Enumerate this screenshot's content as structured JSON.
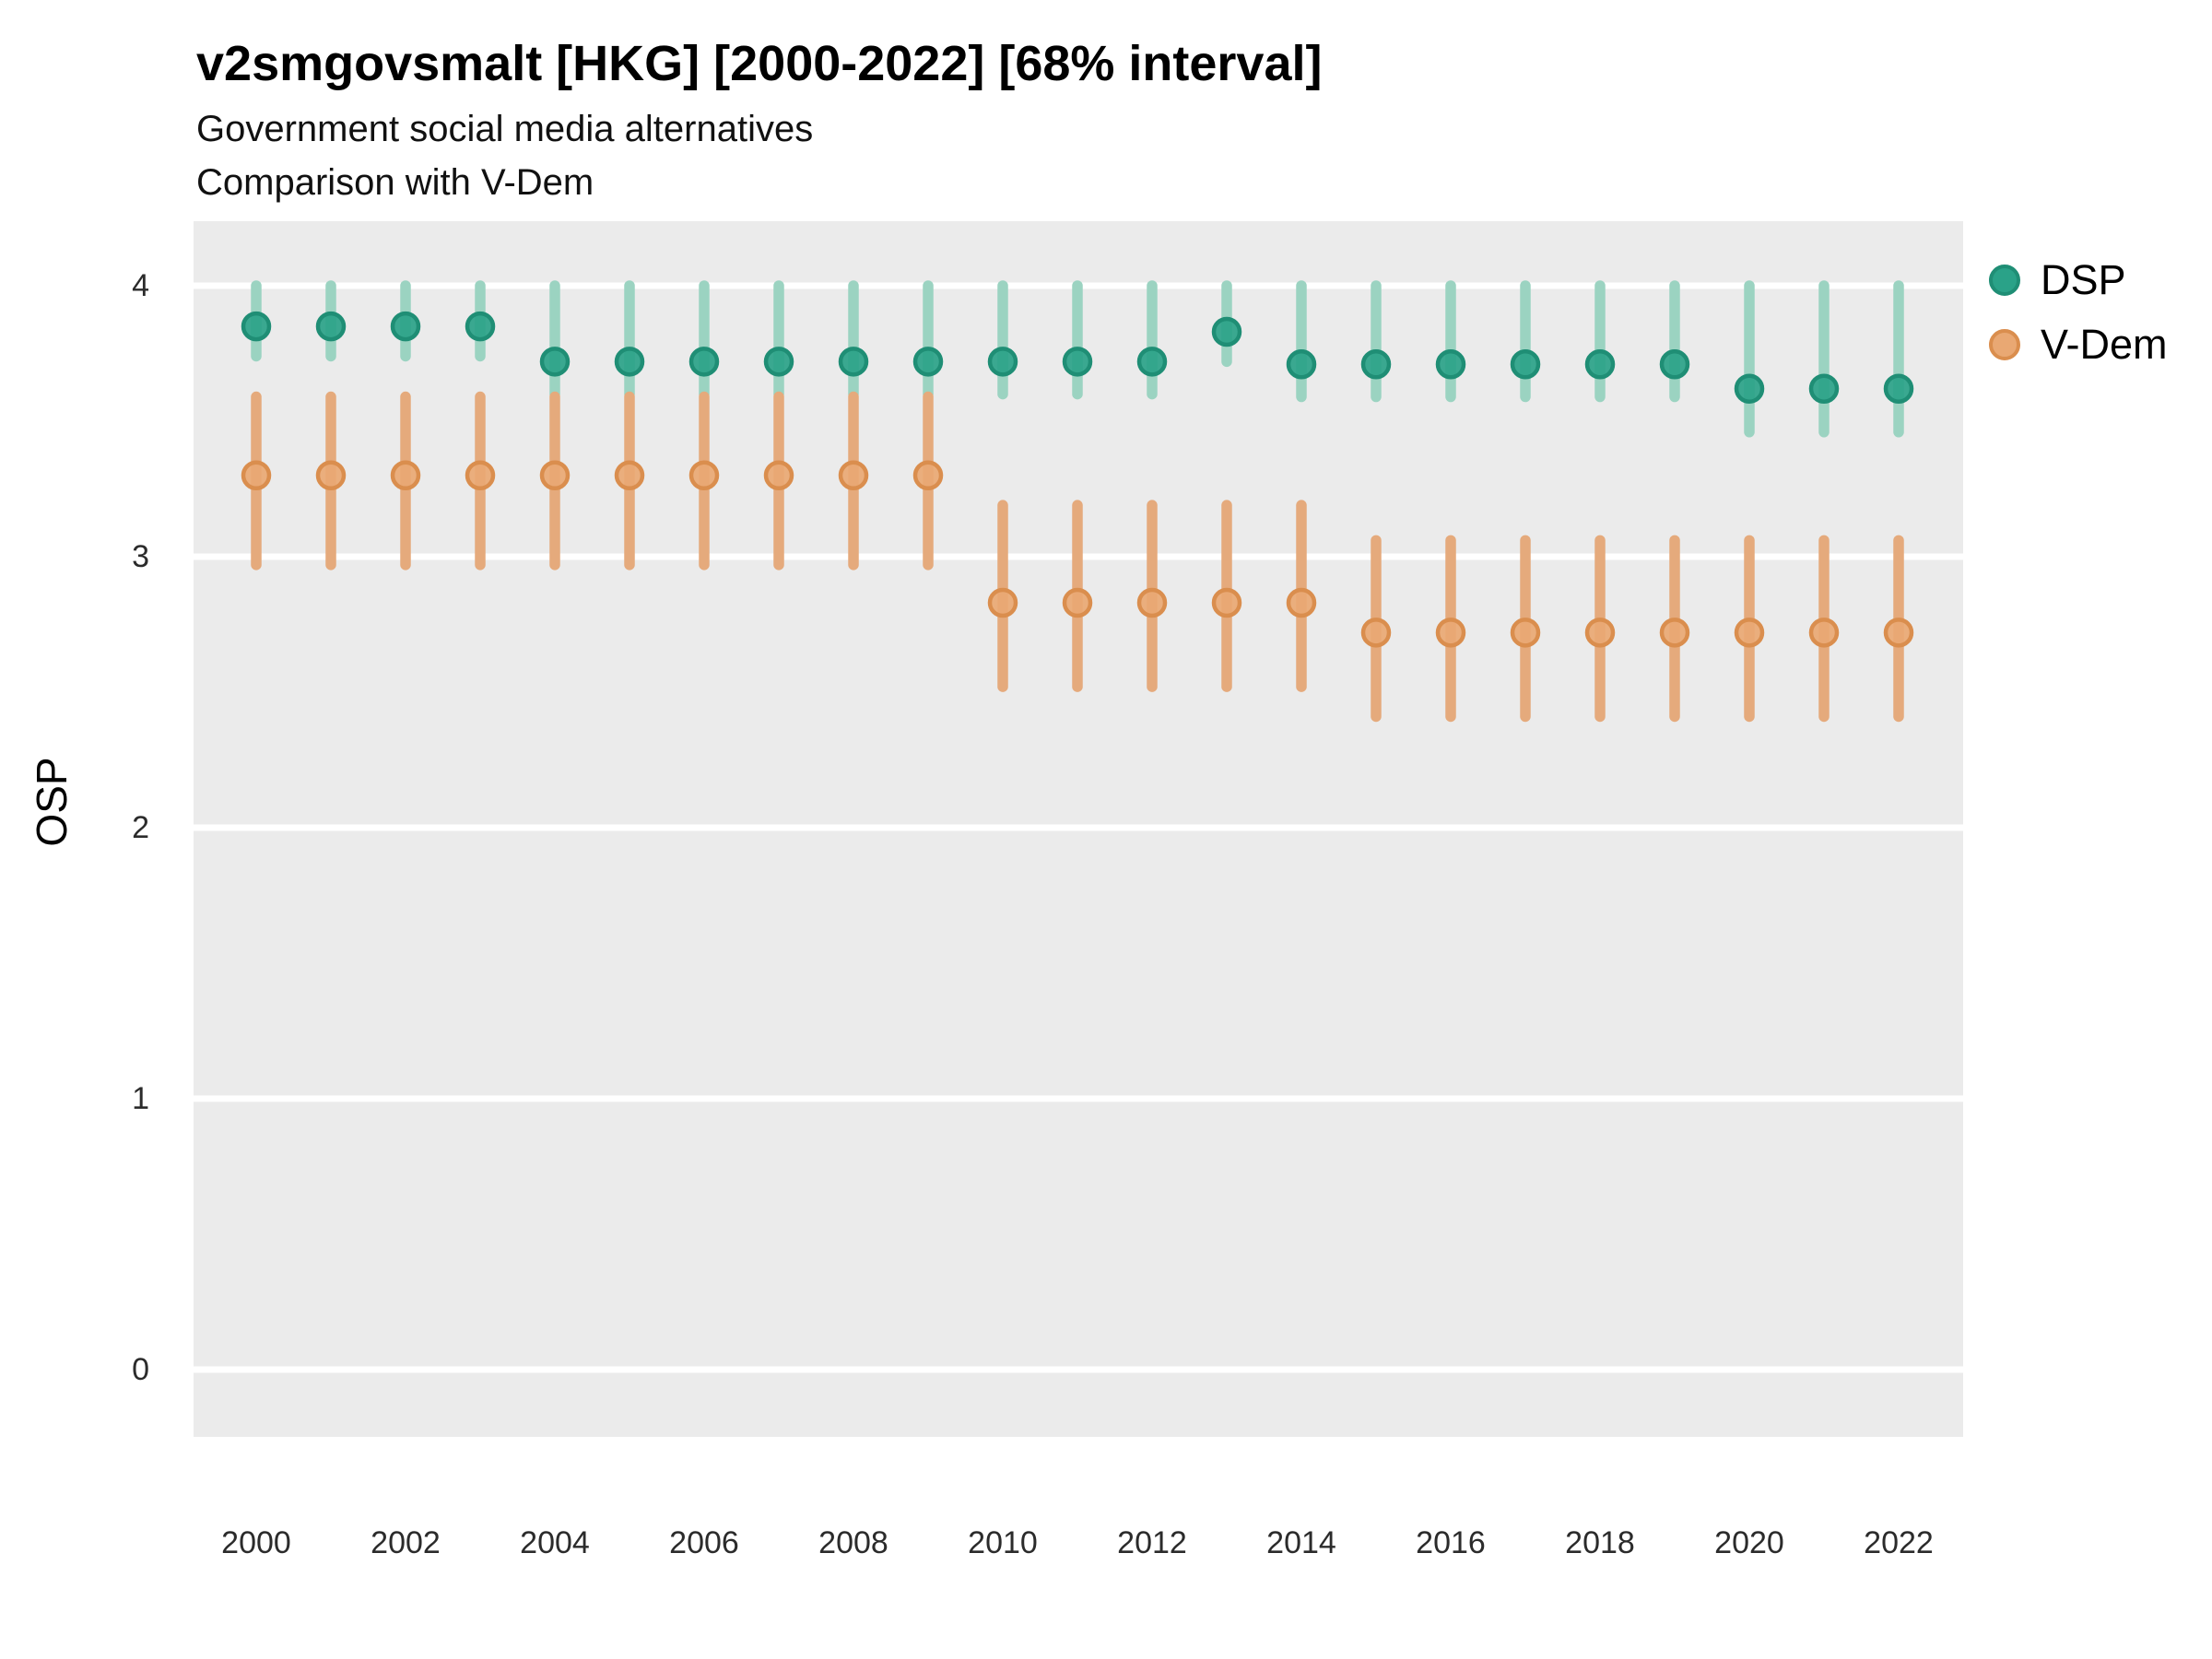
{
  "header": {
    "title": "v2smgovsmalt [HKG] [2000-2022] [68% interval]",
    "subtitle1": "Government social media alternatives",
    "subtitle2": "Comparison with V-Dem"
  },
  "chart_data": {
    "type": "scatter",
    "title": "v2smgovsmalt [HKG] [2000-2022] [68% interval]",
    "subtitle": "Government social media alternatives — Comparison with V-Dem",
    "xlabel": "",
    "ylabel": "OSP",
    "interval": "68% interval",
    "x": [
      2000,
      2001,
      2002,
      2003,
      2004,
      2005,
      2006,
      2007,
      2008,
      2009,
      2010,
      2011,
      2012,
      2013,
      2014,
      2015,
      2016,
      2017,
      2018,
      2019,
      2020,
      2021,
      2022
    ],
    "series": [
      {
        "name": "DSP",
        "point_fill": "#2aa288",
        "point_stroke": "#1f8e75",
        "bar_color": "#9bd3c1",
        "values": [
          3.85,
          3.85,
          3.85,
          3.85,
          3.72,
          3.72,
          3.72,
          3.72,
          3.72,
          3.72,
          3.72,
          3.72,
          3.72,
          3.83,
          3.71,
          3.71,
          3.71,
          3.71,
          3.71,
          3.71,
          3.62,
          3.62,
          3.62
        ],
        "lower": [
          3.74,
          3.74,
          3.74,
          3.74,
          3.6,
          3.6,
          3.6,
          3.6,
          3.6,
          3.6,
          3.6,
          3.6,
          3.6,
          3.72,
          3.59,
          3.59,
          3.59,
          3.59,
          3.59,
          3.59,
          3.46,
          3.46,
          3.46
        ],
        "upper": [
          4.0,
          4.0,
          4.0,
          4.0,
          4.0,
          4.0,
          4.0,
          4.0,
          4.0,
          4.0,
          4.0,
          4.0,
          4.0,
          4.0,
          4.0,
          4.0,
          4.0,
          4.0,
          4.0,
          4.0,
          4.0,
          4.0,
          4.0
        ]
      },
      {
        "name": "V-Dem",
        "point_fill": "#e9a873",
        "point_stroke": "#da8e4e",
        "bar_color": "#e5aa7c",
        "values": [
          3.3,
          3.3,
          3.3,
          3.3,
          3.3,
          3.3,
          3.3,
          3.3,
          3.3,
          3.3,
          2.83,
          2.83,
          2.83,
          2.83,
          2.83,
          2.72,
          2.72,
          2.72,
          2.72,
          2.72,
          2.72,
          2.72,
          2.72
        ],
        "lower": [
          2.97,
          2.97,
          2.97,
          2.97,
          2.97,
          2.97,
          2.97,
          2.97,
          2.97,
          2.97,
          2.52,
          2.52,
          2.52,
          2.52,
          2.52,
          2.41,
          2.41,
          2.41,
          2.41,
          2.41,
          2.41,
          2.41,
          2.41
        ],
        "upper": [
          3.59,
          3.59,
          3.59,
          3.59,
          3.59,
          3.59,
          3.59,
          3.59,
          3.59,
          3.59,
          3.19,
          3.19,
          3.19,
          3.19,
          3.19,
          3.06,
          3.06,
          3.06,
          3.06,
          3.06,
          3.06,
          3.06,
          3.06
        ]
      }
    ],
    "yticks": [
      0,
      1,
      2,
      3,
      4
    ],
    "xticks": [
      2000,
      2002,
      2004,
      2006,
      2008,
      2010,
      2012,
      2014,
      2016,
      2018,
      2020,
      2022
    ],
    "ylim": [
      -0.25,
      4.24
    ],
    "grid": "horizontal-major-only",
    "legend_position": "right",
    "panel_bg": "#ebebeb",
    "grid_color": "#ffffff"
  }
}
